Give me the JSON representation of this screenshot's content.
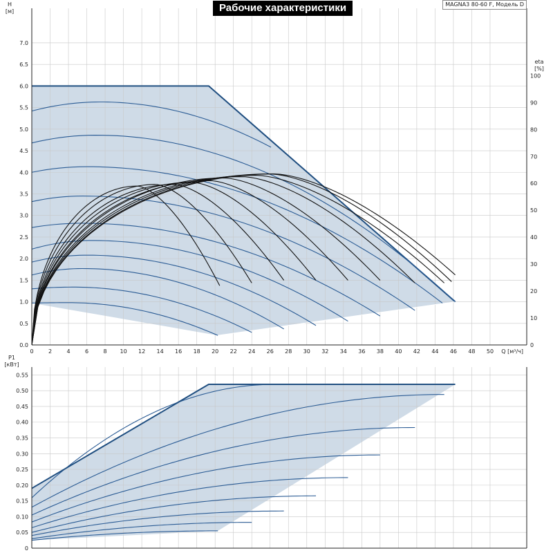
{
  "title": "Рабочие характеристики",
  "model_label": "MAGNA3 80-60 F, Модель D",
  "colors": {
    "area_fill": "#cfdbe7",
    "boundary": "#1f4e80",
    "curve": "#2a5b94",
    "eta_curve": "#111111",
    "grid": "#c8c8c8",
    "axis": "#222222"
  },
  "chart_data": [
    {
      "id": "qh",
      "type": "line",
      "xlabel": "Q [м³/ч]",
      "ylabel_lines": [
        "H",
        "[м]"
      ],
      "y2label_lines": [
        "eta",
        "[%]"
      ],
      "xlim": [
        0,
        54
      ],
      "ylim": [
        0,
        7.8
      ],
      "y2lim": [
        0,
        125
      ],
      "grid": true,
      "x_ticks": [
        0,
        2,
        4,
        6,
        8,
        10,
        12,
        14,
        16,
        18,
        20,
        22,
        24,
        26,
        28,
        30,
        32,
        34,
        36,
        38,
        40,
        42,
        44,
        46,
        48,
        50
      ],
      "x_tick_labels": [
        "0",
        "2",
        "4",
        "6",
        "8",
        "10",
        "12",
        "14",
        "16",
        "18",
        "20",
        "22",
        "24",
        "26",
        "28",
        "30",
        "32",
        "34",
        "36",
        "38",
        "40",
        "42",
        "44",
        "46",
        "48",
        "50"
      ],
      "y_ticks": [
        0,
        0.5,
        1,
        1.5,
        2,
        2.5,
        3,
        3.5,
        4,
        4.5,
        5,
        5.5,
        6,
        6.5,
        7
      ],
      "y_tick_labels": [
        "0.0",
        "0.5",
        "1.0",
        "1.5",
        "2.0",
        "2.5",
        "3.0",
        "3.5",
        "4.0",
        "4.5",
        "5.0",
        "5.5",
        "6.0",
        "6.5",
        "7.0"
      ],
      "y2_ticks": [
        0,
        10,
        20,
        30,
        40,
        50,
        60,
        70,
        80,
        90,
        100
      ],
      "y2_tick_labels": [
        "0",
        "10",
        "20",
        "30",
        "40",
        "50",
        "60",
        "70",
        "80",
        "90",
        "100"
      ],
      "envelope": [
        [
          0,
          6.0
        ],
        [
          19.3,
          6.0
        ],
        [
          46.2,
          1.0
        ],
        [
          20.3,
          0.22
        ],
        [
          0,
          0.97
        ]
      ],
      "pump_curves": [
        {
          "h0": 0.97,
          "ph": 0.98,
          "pq": 4,
          "qend": 20.3,
          "hend": 0.22
        },
        {
          "h0": 1.3,
          "ph": 1.34,
          "pq": 4.5,
          "qend": 24,
          "hend": 0.29
        },
        {
          "h0": 1.62,
          "ph": 1.77,
          "pq": 5.5,
          "qend": 27.5,
          "hend": 0.37
        },
        {
          "h0": 1.92,
          "ph": 2.08,
          "pq": 6,
          "qend": 31,
          "hend": 0.45
        },
        {
          "h0": 2.22,
          "ph": 2.42,
          "pq": 6.5,
          "qend": 34.5,
          "hend": 0.55
        },
        {
          "h0": 2.72,
          "ph": 2.82,
          "pq": 5.5,
          "qend": 38,
          "hend": 0.67
        },
        {
          "h0": 3.32,
          "ph": 3.45,
          "pq": 5.5,
          "qend": 41.8,
          "hend": 0.8
        },
        {
          "h0": 4.0,
          "ph": 4.13,
          "pq": 6,
          "qend": 44.8,
          "hend": 0.97
        },
        {
          "h0": 4.68,
          "ph": 4.86,
          "pq": 7,
          "qend": 46.2,
          "hend": 1.0
        },
        {
          "h0": 5.42,
          "ph": 5.63,
          "pq": 7.5,
          "qend": 26.1,
          "hend": 4.58
        }
      ],
      "eta_curves": [
        {
          "peak_q": 11.5,
          "peak_eta": 59,
          "end_q": 20.5,
          "end_eta": 22
        },
        {
          "peak_q": 13.5,
          "peak_eta": 59.6,
          "end_q": 24,
          "end_eta": 23
        },
        {
          "peak_q": 15.5,
          "peak_eta": 59.6,
          "end_q": 27.5,
          "end_eta": 24
        },
        {
          "peak_q": 17.5,
          "peak_eta": 60.4,
          "end_q": 31,
          "end_eta": 24
        },
        {
          "peak_q": 19.5,
          "peak_eta": 61,
          "end_q": 34.5,
          "end_eta": 24
        },
        {
          "peak_q": 21,
          "peak_eta": 62,
          "end_q": 38,
          "end_eta": 24
        },
        {
          "peak_q": 23,
          "peak_eta": 62.5,
          "end_q": 41.8,
          "end_eta": 23
        },
        {
          "peak_q": 24.5,
          "peak_eta": 63,
          "end_q": 45,
          "end_eta": 23
        },
        {
          "peak_q": 26,
          "peak_eta": 63.5,
          "end_q": 45.8,
          "end_eta": 23.5
        },
        {
          "peak_q": 26.5,
          "peak_eta": 63.5,
          "end_q": 46.2,
          "end_eta": 26
        }
      ]
    },
    {
      "id": "p1",
      "type": "line",
      "ylabel_lines": [
        "P1",
        "[кВт]"
      ],
      "xlim": [
        0,
        54
      ],
      "ylim": [
        0,
        0.575
      ],
      "grid": true,
      "x_ticks": [
        0,
        2,
        4,
        6,
        8,
        10,
        12,
        14,
        16,
        18,
        20,
        22,
        24,
        26,
        28,
        30,
        32,
        34,
        36,
        38,
        40,
        42,
        44,
        46,
        48,
        50
      ],
      "y_ticks": [
        0,
        0.05,
        0.1,
        0.15,
        0.2,
        0.25,
        0.3,
        0.35,
        0.4,
        0.45,
        0.5,
        0.55
      ],
      "y_tick_labels": [
        "0",
        "0.05",
        "0.10",
        "0.15",
        "0.20",
        "0.25",
        "0.30",
        "0.35",
        "0.40",
        "0.45",
        "0.50",
        "0.55"
      ],
      "envelope": [
        [
          0,
          0.19
        ],
        [
          19.3,
          0.52
        ],
        [
          46.2,
          0.52
        ],
        [
          20.3,
          0.055
        ],
        [
          0,
          0.025
        ]
      ],
      "power_curves": [
        {
          "p0": 0.025,
          "qend": 20.3,
          "pend": 0.055
        },
        {
          "p0": 0.03,
          "qend": 24,
          "pend": 0.082
        },
        {
          "p0": 0.04,
          "qend": 27.5,
          "pend": 0.118
        },
        {
          "p0": 0.05,
          "qend": 31,
          "pend": 0.166
        },
        {
          "p0": 0.065,
          "qend": 34.5,
          "pend": 0.224
        },
        {
          "p0": 0.083,
          "qend": 38,
          "pend": 0.296
        },
        {
          "p0": 0.105,
          "qend": 41.8,
          "pend": 0.383
        },
        {
          "p0": 0.13,
          "qend": 45,
          "pend": 0.488
        },
        {
          "p0": 0.16,
          "qend": 26.5,
          "pend": 0.52
        }
      ]
    }
  ]
}
